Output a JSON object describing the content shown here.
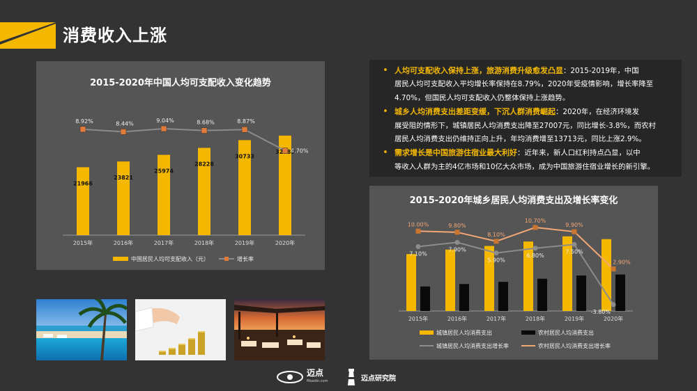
{
  "page": {
    "title": "消费收入上涨"
  },
  "bullets": [
    {
      "highlight": "人均可支配收入保持上涨，旅游消费升级愈发凸显",
      "lines": [
        "：2015-2019年，中国",
        "居民人均可支配收入平均增长率保持在8.79%，2020年受疫情影响，增长率降至",
        "4.70%，但国民人均可支配收入仍整体保持上涨趋势。"
      ]
    },
    {
      "highlight": "城乡人均消费支出差距变缓，下沉人群消费崛起",
      "lines": [
        "：2020年，在经济环境发",
        "展受阻的情形下，城镇居民人均消费支出降至27007元，同比增长-3.8%，而农村",
        "居民人均消费支出仍维持正向上升，年均消费增至13713元，同比上涨2.9%。"
      ]
    },
    {
      "highlight": "需求增长是中国旅游住宿业最大利好",
      "lines": [
        "：近年来，新人口红利持点凸显，以中",
        "等收入人群为主的4亿市场和10亿大众市场，成为中国旅游住宿业增长的新引擎。"
      ]
    }
  ],
  "footer": {
    "logo1": "迈点",
    "logo1_sub": "Meadin.com",
    "logo2": "迈点研究院"
  },
  "colors": {
    "accent": "#F5B800",
    "marker": "#E07B39",
    "line_gray": "#8C8C8C",
    "background": "#333333",
    "panel": "#555555"
  },
  "photos": [
    "beach-resort-pool-photo",
    "coin-stacks-hand-photo",
    "rooftop-terrace-sunset-photo"
  ],
  "chart_data": [
    {
      "type": "bar",
      "title": "2015-2020年中国人均可支配收入变化趋势",
      "categories": [
        "2015年",
        "2016年",
        "2017年",
        "2018年",
        "2019年",
        "2020年"
      ],
      "series": [
        {
          "name": "中国居民人均可支配收入（元）",
          "kind": "bar",
          "color": "#F5B800",
          "values": [
            21966,
            23821,
            25974,
            28228,
            30733,
            32189
          ],
          "labels": [
            "21966",
            "23821",
            "25974",
            "28228",
            "30733",
            "32189"
          ]
        },
        {
          "name": "增长率",
          "kind": "line",
          "color": "#8C8C8C",
          "marker_color": "#E07B39",
          "values": [
            8.92,
            8.44,
            9.04,
            8.68,
            8.87,
            4.7
          ],
          "labels": [
            "8.92%",
            "8.44%",
            "9.04%",
            "8.68%",
            "8.87%",
            "4.70%"
          ]
        }
      ],
      "bar_ylim": [
        0,
        36000
      ],
      "line_ylim": [
        -12,
        10
      ],
      "legend": "bottom",
      "grid": false
    },
    {
      "type": "bar",
      "title": "2015-2020年城乡居民人均消费支出及增长率变化",
      "categories": [
        "2015年",
        "2016年",
        "2017年",
        "2018年",
        "2019年",
        "2020年"
      ],
      "series": [
        {
          "name": "城镇居民人均消费支出",
          "kind": "bar",
          "color": "#F5B800",
          "values": [
            21392,
            23079,
            24445,
            26112,
            28063,
            27007
          ]
        },
        {
          "name": "农村居民人均消费支出",
          "kind": "bar",
          "color": "#0A0A0A",
          "values": [
            9223,
            10130,
            10955,
            12124,
            13328,
            13713
          ]
        },
        {
          "name": "城镇居民人均消费支出增长率",
          "kind": "line",
          "color": "#8C8C8C",
          "values": [
            7.1,
            7.9,
            5.9,
            6.8,
            7.5,
            -3.8
          ],
          "labels": [
            "7.10%",
            "7.90%",
            "5.90%",
            "6.80%",
            "7.50%",
            "-3.80%"
          ]
        },
        {
          "name": "农村居民人均消费支出增长率",
          "kind": "line",
          "color": "#F3A877",
          "values": [
            10.0,
            9.8,
            8.1,
            10.7,
            9.9,
            2.9
          ],
          "labels": [
            "10.00%",
            "9.80%",
            "8.10%",
            "10.70%",
            "9.90%",
            "2.90%"
          ]
        }
      ],
      "bar_ylim": [
        0,
        34000
      ],
      "line_ylim": [
        -5,
        12
      ],
      "legend": "bottom",
      "grid": false
    }
  ]
}
